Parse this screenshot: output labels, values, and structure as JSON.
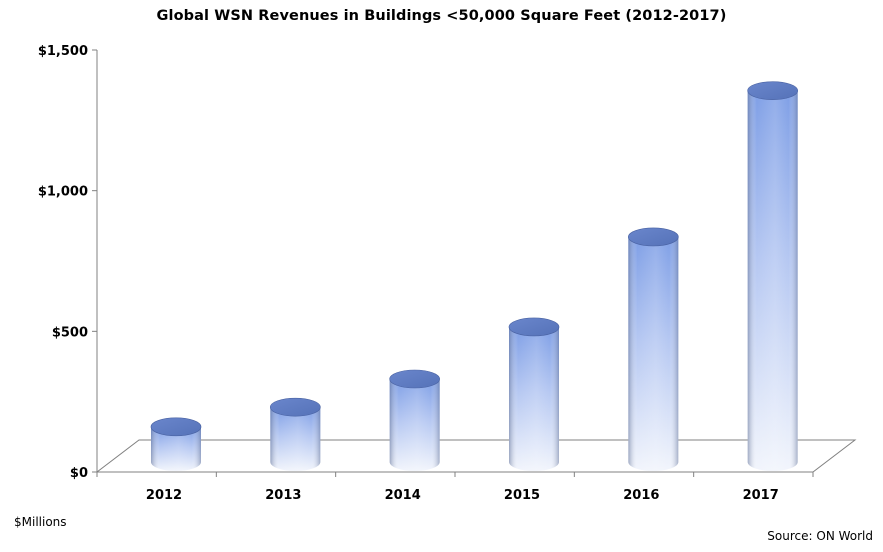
{
  "chart_data": {
    "type": "bar",
    "title": "Global WSN Revenues in Buildings <50,000 Square Feet (2012-2017)",
    "categories": [
      "2012",
      "2013",
      "2014",
      "2015",
      "2016",
      "2017"
    ],
    "values": [
      125,
      195,
      295,
      480,
      800,
      1320
    ],
    "ylim": [
      0,
      1500
    ],
    "yticks": [
      0,
      500,
      1000,
      1500
    ],
    "ytick_labels": [
      "$0",
      "$500",
      "$1,000",
      "$1,500"
    ],
    "ylabel": "$Millions",
    "xlabel": "",
    "grid": false,
    "bar_style": "3d-cylinder",
    "colors": {
      "bar_top": "#7f9fe6",
      "bar_light": "#c8d7f7",
      "bar_bottom": "#f2f5fc",
      "axis": "#808080"
    }
  },
  "source": "Source: ON World"
}
